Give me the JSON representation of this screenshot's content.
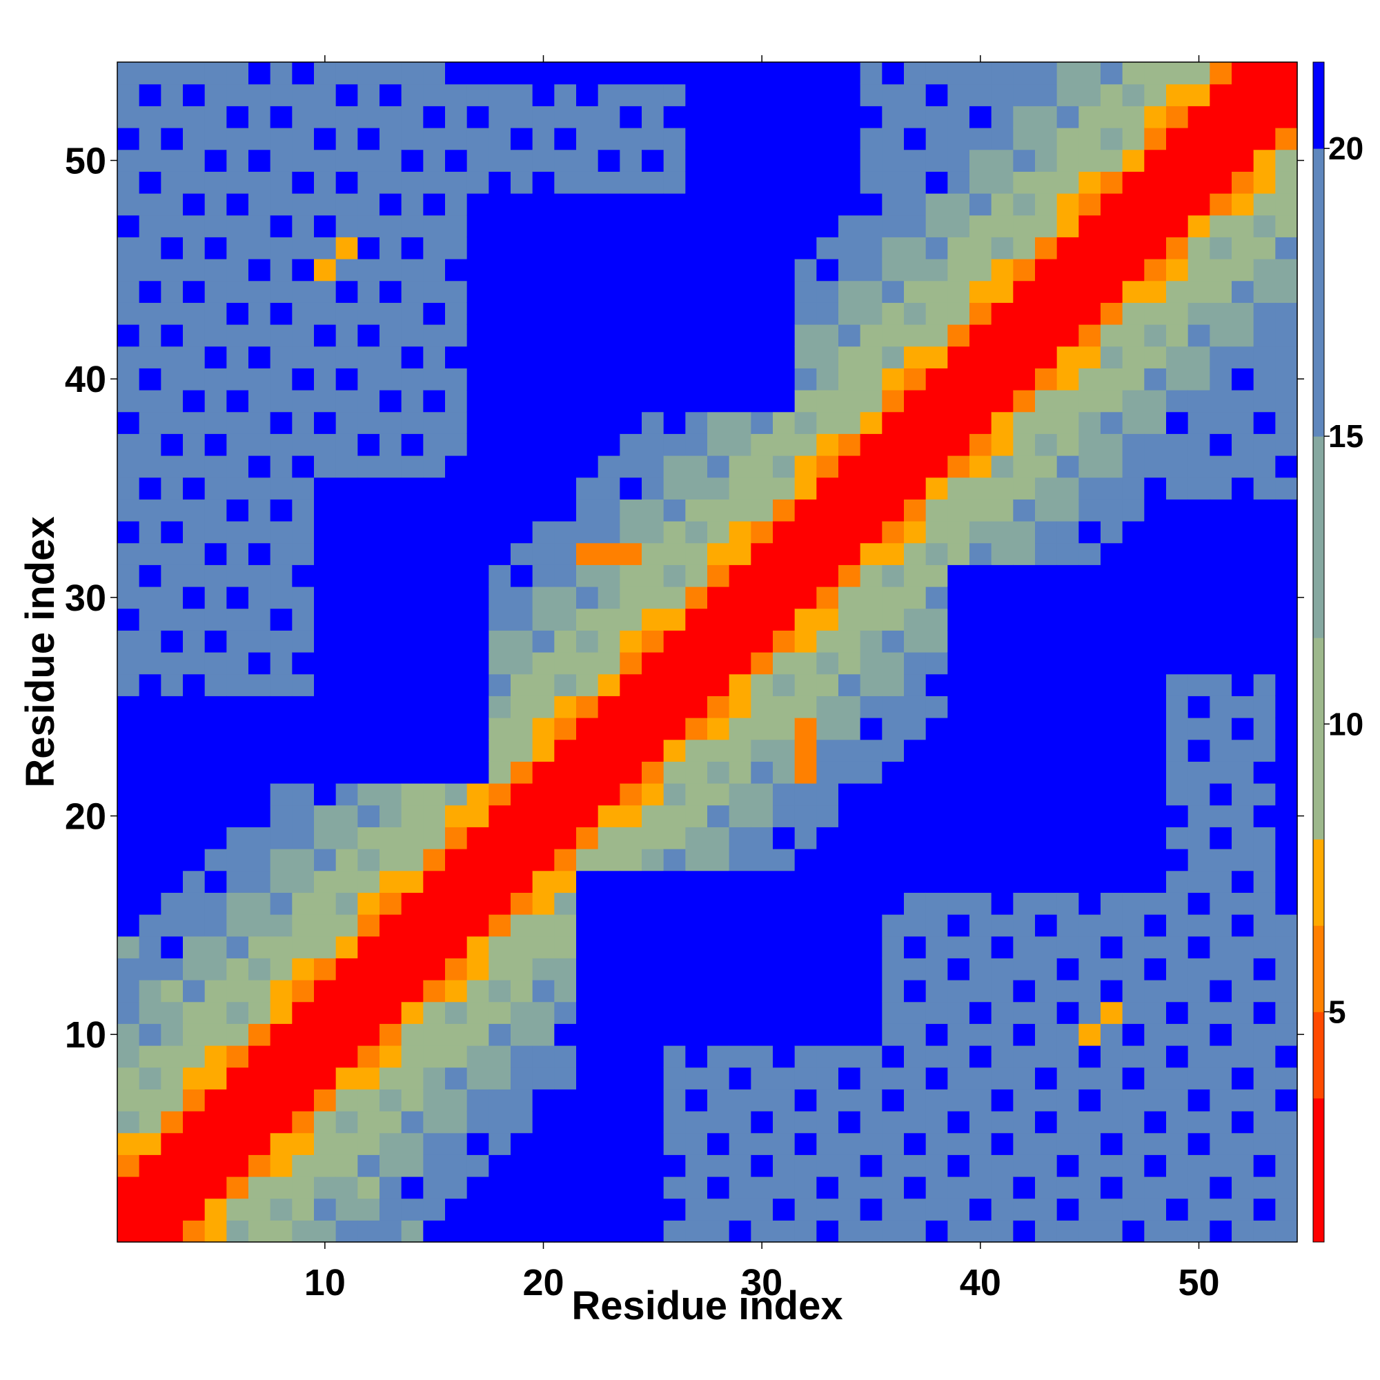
{
  "chart_data": {
    "type": "heatmap",
    "title": "",
    "xlabel": "Residue index",
    "ylabel": "Residue index",
    "x_range": [
      1,
      54
    ],
    "y_range": [
      1,
      54
    ],
    "x_ticks": [
      10,
      20,
      30,
      40,
      50
    ],
    "y_ticks": [
      10,
      20,
      30,
      40,
      50
    ],
    "x_tick_labels": [
      "10",
      "20",
      "30",
      "40",
      "50"
    ],
    "y_tick_labels": [
      "10",
      "20",
      "30",
      "40",
      "50"
    ],
    "colorbar": {
      "min": 1,
      "max": 21.5,
      "ticks": [
        5,
        10,
        15,
        20
      ],
      "tick_labels": [
        "5",
        "10",
        "15",
        "20"
      ],
      "color_levels": [
        {
          "from": 1.0,
          "to": 3.5,
          "color": "#ff0000"
        },
        {
          "from": 3.5,
          "to": 5.0,
          "color": "#ff4a00"
        },
        {
          "from": 5.0,
          "to": 6.5,
          "color": "#ff8000"
        },
        {
          "from": 6.5,
          "to": 8.0,
          "color": "#ffaa00"
        },
        {
          "from": 8.0,
          "to": 11.5,
          "color": "#9db88c"
        },
        {
          "from": 11.5,
          "to": 15.0,
          "color": "#86a8a0"
        },
        {
          "from": 15.0,
          "to": 20.0,
          "color": "#5f87bd"
        },
        {
          "from": 20.0,
          "to": 21.5,
          "color": "#0000ff"
        }
      ]
    },
    "distance_model": {
      "description": "C-alpha distance map; matrix is symmetric",
      "band_contacts": [
        {
          "i_range": [
            1,
            21
          ],
          "j_range": [
            1,
            21
          ]
        },
        {
          "i_range": [
            18,
            38
          ],
          "j_range": [
            18,
            38
          ]
        },
        {
          "i_range": [
            32,
            54
          ],
          "j_range": [
            32,
            54
          ]
        }
      ],
      "special_contacts": [
        {
          "i": 11,
          "j": 46,
          "value": 6.5
        },
        {
          "i": 10,
          "j": 45,
          "value": 7.5
        },
        {
          "i": 1,
          "j": 14,
          "value": 13
        },
        {
          "i": 3,
          "j": 12,
          "value": 8
        },
        {
          "i": 24,
          "j": 32,
          "value": 6
        },
        {
          "i": 23,
          "j": 32,
          "value": 5.5
        },
        {
          "i": 22,
          "j": 32,
          "value": 5.5
        }
      ],
      "medium_regions": [
        {
          "i_range": [
            1,
            6
          ],
          "j_range": [
            35,
            52
          ],
          "value": 18
        },
        {
          "i_range": [
            35,
            52
          ],
          "j_range": [
            44,
            54
          ],
          "value": 18.5
        },
        {
          "i_range": [
            1,
            16
          ],
          "j_range": [
            36,
            54
          ],
          "value": 19
        },
        {
          "i_range": [
            26,
            50
          ],
          "j_range": [
            1,
            9
          ],
          "value": 19
        },
        {
          "i_range": [
            49,
            53
          ],
          "j_range": [
            8,
            26
          ],
          "value": 18.5
        }
      ]
    }
  }
}
